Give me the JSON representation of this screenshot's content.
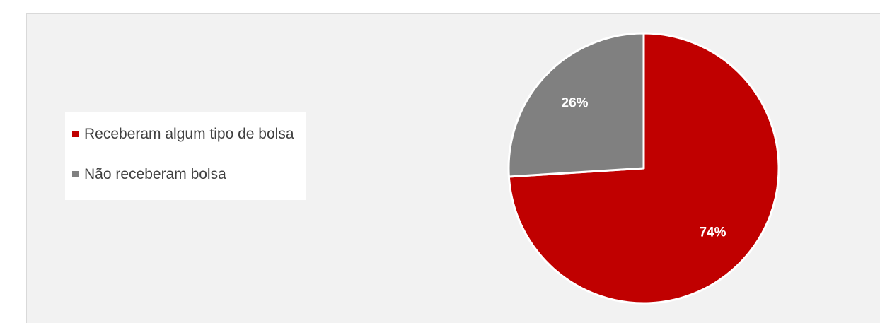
{
  "chart_data": {
    "type": "pie",
    "title": "",
    "series": [
      {
        "name": "",
        "slices": [
          {
            "label": "Receberam algum tipo de bolsa",
            "value": 74,
            "data_label": "74%",
            "color": "#c00000"
          },
          {
            "label": "Não receberam bolsa",
            "value": 26,
            "data_label": "26%",
            "color": "#808080"
          }
        ]
      }
    ],
    "legend_position": "left"
  }
}
